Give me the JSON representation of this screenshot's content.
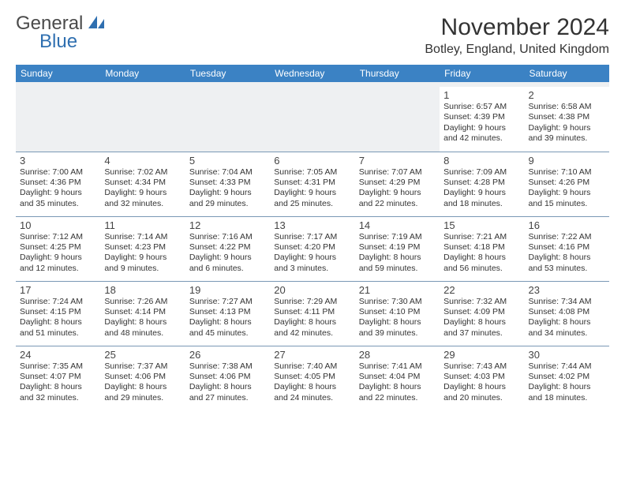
{
  "brand": {
    "general": "General",
    "blue": "Blue"
  },
  "title": "November 2024",
  "location": "Botley, England, United Kingdom",
  "dayHeaders": [
    "Sunday",
    "Monday",
    "Tuesday",
    "Wednesday",
    "Thursday",
    "Friday",
    "Saturday"
  ],
  "colors": {
    "headerBg": "#3b82c4",
    "headerText": "#ffffff",
    "borderColor": "#7a98b5",
    "logoBlue": "#2f6fb0"
  },
  "weeks": [
    [
      null,
      null,
      null,
      null,
      null,
      {
        "n": "1",
        "sunrise": "6:57 AM",
        "sunset": "4:39 PM",
        "daylight": "9 hours and 42 minutes."
      },
      {
        "n": "2",
        "sunrise": "6:58 AM",
        "sunset": "4:38 PM",
        "daylight": "9 hours and 39 minutes."
      }
    ],
    [
      {
        "n": "3",
        "sunrise": "7:00 AM",
        "sunset": "4:36 PM",
        "daylight": "9 hours and 35 minutes."
      },
      {
        "n": "4",
        "sunrise": "7:02 AM",
        "sunset": "4:34 PM",
        "daylight": "9 hours and 32 minutes."
      },
      {
        "n": "5",
        "sunrise": "7:04 AM",
        "sunset": "4:33 PM",
        "daylight": "9 hours and 29 minutes."
      },
      {
        "n": "6",
        "sunrise": "7:05 AM",
        "sunset": "4:31 PM",
        "daylight": "9 hours and 25 minutes."
      },
      {
        "n": "7",
        "sunrise": "7:07 AM",
        "sunset": "4:29 PM",
        "daylight": "9 hours and 22 minutes."
      },
      {
        "n": "8",
        "sunrise": "7:09 AM",
        "sunset": "4:28 PM",
        "daylight": "9 hours and 18 minutes."
      },
      {
        "n": "9",
        "sunrise": "7:10 AM",
        "sunset": "4:26 PM",
        "daylight": "9 hours and 15 minutes."
      }
    ],
    [
      {
        "n": "10",
        "sunrise": "7:12 AM",
        "sunset": "4:25 PM",
        "daylight": "9 hours and 12 minutes."
      },
      {
        "n": "11",
        "sunrise": "7:14 AM",
        "sunset": "4:23 PM",
        "daylight": "9 hours and 9 minutes."
      },
      {
        "n": "12",
        "sunrise": "7:16 AM",
        "sunset": "4:22 PM",
        "daylight": "9 hours and 6 minutes."
      },
      {
        "n": "13",
        "sunrise": "7:17 AM",
        "sunset": "4:20 PM",
        "daylight": "9 hours and 3 minutes."
      },
      {
        "n": "14",
        "sunrise": "7:19 AM",
        "sunset": "4:19 PM",
        "daylight": "8 hours and 59 minutes."
      },
      {
        "n": "15",
        "sunrise": "7:21 AM",
        "sunset": "4:18 PM",
        "daylight": "8 hours and 56 minutes."
      },
      {
        "n": "16",
        "sunrise": "7:22 AM",
        "sunset": "4:16 PM",
        "daylight": "8 hours and 53 minutes."
      }
    ],
    [
      {
        "n": "17",
        "sunrise": "7:24 AM",
        "sunset": "4:15 PM",
        "daylight": "8 hours and 51 minutes."
      },
      {
        "n": "18",
        "sunrise": "7:26 AM",
        "sunset": "4:14 PM",
        "daylight": "8 hours and 48 minutes."
      },
      {
        "n": "19",
        "sunrise": "7:27 AM",
        "sunset": "4:13 PM",
        "daylight": "8 hours and 45 minutes."
      },
      {
        "n": "20",
        "sunrise": "7:29 AM",
        "sunset": "4:11 PM",
        "daylight": "8 hours and 42 minutes."
      },
      {
        "n": "21",
        "sunrise": "7:30 AM",
        "sunset": "4:10 PM",
        "daylight": "8 hours and 39 minutes."
      },
      {
        "n": "22",
        "sunrise": "7:32 AM",
        "sunset": "4:09 PM",
        "daylight": "8 hours and 37 minutes."
      },
      {
        "n": "23",
        "sunrise": "7:34 AM",
        "sunset": "4:08 PM",
        "daylight": "8 hours and 34 minutes."
      }
    ],
    [
      {
        "n": "24",
        "sunrise": "7:35 AM",
        "sunset": "4:07 PM",
        "daylight": "8 hours and 32 minutes."
      },
      {
        "n": "25",
        "sunrise": "7:37 AM",
        "sunset": "4:06 PM",
        "daylight": "8 hours and 29 minutes."
      },
      {
        "n": "26",
        "sunrise": "7:38 AM",
        "sunset": "4:06 PM",
        "daylight": "8 hours and 27 minutes."
      },
      {
        "n": "27",
        "sunrise": "7:40 AM",
        "sunset": "4:05 PM",
        "daylight": "8 hours and 24 minutes."
      },
      {
        "n": "28",
        "sunrise": "7:41 AM",
        "sunset": "4:04 PM",
        "daylight": "8 hours and 22 minutes."
      },
      {
        "n": "29",
        "sunrise": "7:43 AM",
        "sunset": "4:03 PM",
        "daylight": "8 hours and 20 minutes."
      },
      {
        "n": "30",
        "sunrise": "7:44 AM",
        "sunset": "4:02 PM",
        "daylight": "8 hours and 18 minutes."
      }
    ]
  ]
}
